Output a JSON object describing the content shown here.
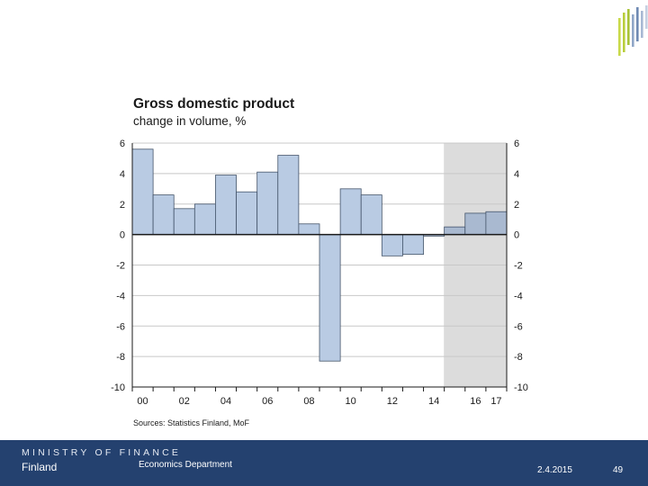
{
  "slide": {
    "footer": {
      "organization": "MINISTRY OF FINANCE",
      "country": "Finland",
      "department": "Economics Department",
      "date": "2.4.2015",
      "page_number": "49",
      "bar_color": "#24416f"
    }
  },
  "chart_data": {
    "type": "bar",
    "title": "Gross domestic product",
    "subtitle": "change in volume, %",
    "source": "Sources: Statistics Finland, MoF",
    "x": [
      "2000",
      "2001",
      "2002",
      "2003",
      "2004",
      "2005",
      "2006",
      "2007",
      "2008",
      "2009",
      "2010",
      "2011",
      "2012",
      "2013",
      "2014",
      "2015",
      "2016",
      "2017"
    ],
    "x_tick_labels": [
      "00",
      "02",
      "04",
      "06",
      "08",
      "10",
      "12",
      "14",
      "16",
      "17"
    ],
    "values": [
      5.6,
      2.6,
      1.7,
      2.0,
      3.9,
      2.8,
      4.1,
      5.2,
      0.7,
      -8.3,
      3.0,
      2.6,
      -1.4,
      -1.3,
      -0.1,
      0.5,
      1.4,
      1.5
    ],
    "ylim": [
      -10,
      6
    ],
    "y_ticks": [
      "6",
      "4",
      "2",
      "0",
      "-2",
      "-4",
      "-6",
      "-8",
      "-10"
    ],
    "forecast_from": "2015",
    "bar_color": "#b9cbe3",
    "forecast_bar_color": "#a9b9d0",
    "forecast_shade_color": "#dcdcdc",
    "grid": true
  }
}
